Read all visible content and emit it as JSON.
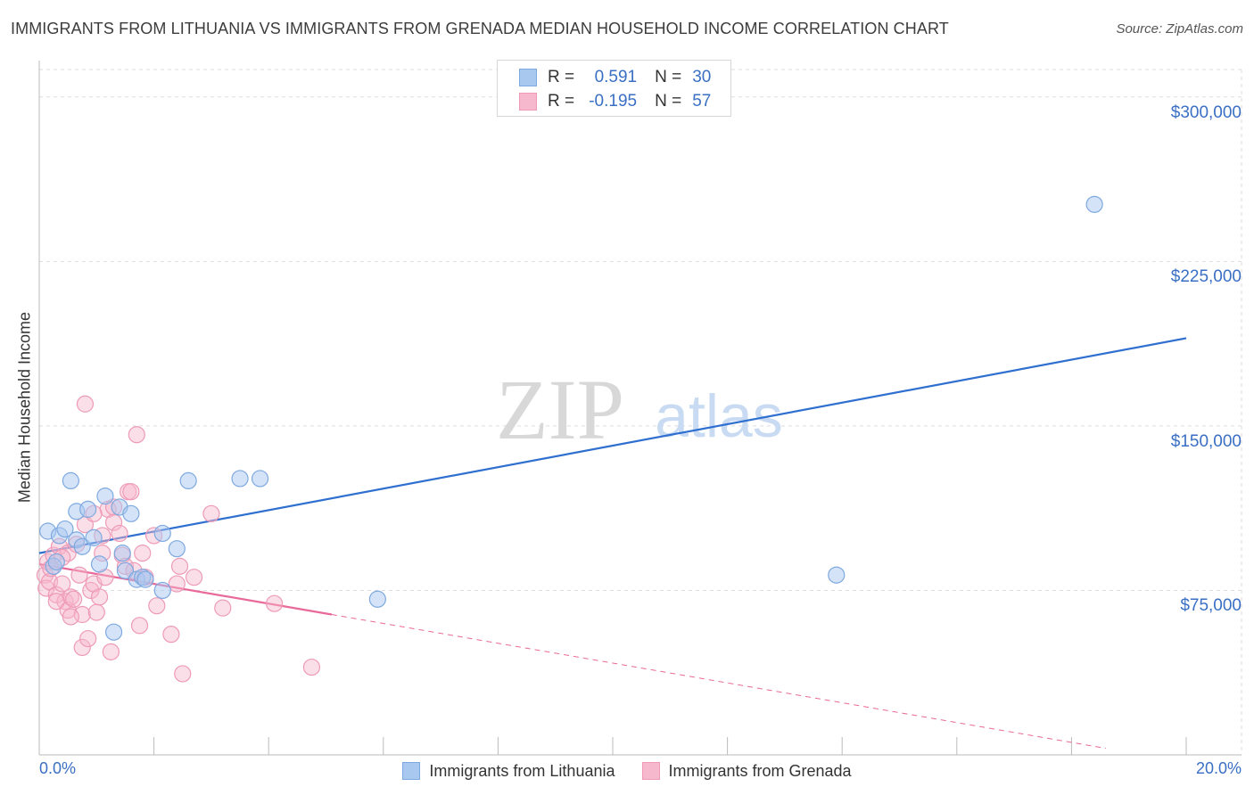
{
  "header": {
    "title": "IMMIGRANTS FROM LITHUANIA VS IMMIGRANTS FROM GRENADA MEDIAN HOUSEHOLD INCOME CORRELATION CHART",
    "source": "Source: ZipAtlas.com"
  },
  "watermark": {
    "zip": "ZIP",
    "atlas": "atlas"
  },
  "stats": {
    "lithuania": {
      "r_label": "R =",
      "r_value": "0.591",
      "n_label": "N =",
      "n_value": "30"
    },
    "grenada": {
      "r_label": "R =",
      "r_value": "-0.195",
      "n_label": "N =",
      "n_value": "57"
    }
  },
  "colors": {
    "lithuania_fill": "#a9c8f0",
    "lithuania_stroke": "#7ea9e0",
    "lithuania_line": "#2f6fd0",
    "grenada_fill": "#f6b8cd",
    "grenada_stroke": "#ee9ab7",
    "grenada_line": "#e8699a",
    "tick_text": "#3a6fc4",
    "grid": "#dddddd"
  },
  "chart_data": {
    "type": "scatter",
    "title": "IMMIGRANTS FROM LITHUANIA VS IMMIGRANTS FROM GRENADA MEDIAN HOUSEHOLD INCOME CORRELATION CHART",
    "xlabel": "",
    "ylabel": "Median Household Income",
    "xlim": [
      0,
      20
    ],
    "ylim": [
      0,
      312500
    ],
    "x_tick_labels": [
      "0.0%",
      "20.0%"
    ],
    "y_ticks": [
      75000,
      150000,
      225000,
      300000
    ],
    "y_tick_labels": [
      "$75,000",
      "$150,000",
      "$225,000",
      "$300,000"
    ],
    "grid": true,
    "legend": "bottom-center",
    "series": [
      {
        "name": "Immigrants from Lithuania",
        "points": [
          [
            0.15,
            102000
          ],
          [
            0.25,
            86000
          ],
          [
            0.3,
            88000
          ],
          [
            0.35,
            100000
          ],
          [
            0.45,
            103000
          ],
          [
            0.55,
            125000
          ],
          [
            0.65,
            98000
          ],
          [
            0.65,
            111000
          ],
          [
            0.75,
            95000
          ],
          [
            0.85,
            112000
          ],
          [
            0.95,
            99000
          ],
          [
            1.05,
            87000
          ],
          [
            1.15,
            118000
          ],
          [
            1.4,
            113000
          ],
          [
            1.45,
            92000
          ],
          [
            1.5,
            84000
          ],
          [
            1.6,
            110000
          ],
          [
            1.7,
            80000
          ],
          [
            1.8,
            81000
          ],
          [
            1.85,
            80000
          ],
          [
            2.15,
            101000
          ],
          [
            2.15,
            75000
          ],
          [
            2.4,
            94000
          ],
          [
            2.6,
            125000
          ],
          [
            3.5,
            126000
          ],
          [
            3.85,
            126000
          ],
          [
            5.9,
            71000
          ],
          [
            13.9,
            82000
          ],
          [
            18.4,
            251000
          ],
          [
            1.3,
            56000
          ]
        ],
        "trend": {
          "x": [
            0,
            20
          ],
          "y": [
            92000,
            190000
          ]
        }
      },
      {
        "name": "Immigrants from Grenada",
        "points": [
          [
            0.1,
            82000
          ],
          [
            0.12,
            76000
          ],
          [
            0.15,
            88000
          ],
          [
            0.18,
            79000
          ],
          [
            0.2,
            85000
          ],
          [
            0.25,
            91000
          ],
          [
            0.3,
            73000
          ],
          [
            0.35,
            95000
          ],
          [
            0.4,
            78000
          ],
          [
            0.45,
            70000
          ],
          [
            0.5,
            66000
          ],
          [
            0.5,
            92000
          ],
          [
            0.55,
            72000
          ],
          [
            0.6,
            71000
          ],
          [
            0.65,
            96000
          ],
          [
            0.7,
            82000
          ],
          [
            0.75,
            49000
          ],
          [
            0.75,
            64000
          ],
          [
            0.8,
            105000
          ],
          [
            0.8,
            160000
          ],
          [
            0.85,
            53000
          ],
          [
            0.9,
            75000
          ],
          [
            0.95,
            78000
          ],
          [
            1.0,
            65000
          ],
          [
            1.05,
            72000
          ],
          [
            1.1,
            92000
          ],
          [
            1.1,
            100000
          ],
          [
            1.15,
            81000
          ],
          [
            1.2,
            112000
          ],
          [
            1.25,
            47000
          ],
          [
            1.3,
            113000
          ],
          [
            1.3,
            106000
          ],
          [
            1.4,
            101000
          ],
          [
            1.45,
            91000
          ],
          [
            1.5,
            86000
          ],
          [
            1.55,
            120000
          ],
          [
            1.6,
            120000
          ],
          [
            1.65,
            84000
          ],
          [
            1.7,
            146000
          ],
          [
            1.75,
            59000
          ],
          [
            1.8,
            92000
          ],
          [
            1.85,
            81000
          ],
          [
            2.0,
            100000
          ],
          [
            2.05,
            68000
          ],
          [
            2.3,
            55000
          ],
          [
            2.4,
            78000
          ],
          [
            2.45,
            86000
          ],
          [
            2.5,
            37000
          ],
          [
            2.7,
            81000
          ],
          [
            3.0,
            110000
          ],
          [
            3.2,
            67000
          ],
          [
            4.1,
            69000
          ],
          [
            4.75,
            40000
          ],
          [
            0.3,
            70000
          ],
          [
            0.55,
            63000
          ],
          [
            0.95,
            110000
          ],
          [
            0.4,
            90000
          ]
        ],
        "trend": {
          "x": [
            0,
            5.1
          ],
          "y": [
            87000,
            64000
          ]
        },
        "trend_extension": {
          "x": [
            5.1,
            18.6
          ],
          "y": [
            64000,
            3000
          ]
        }
      }
    ]
  },
  "legend_bottom": {
    "lithuania": "Immigrants from Lithuania",
    "grenada": "Immigrants from Grenada"
  }
}
